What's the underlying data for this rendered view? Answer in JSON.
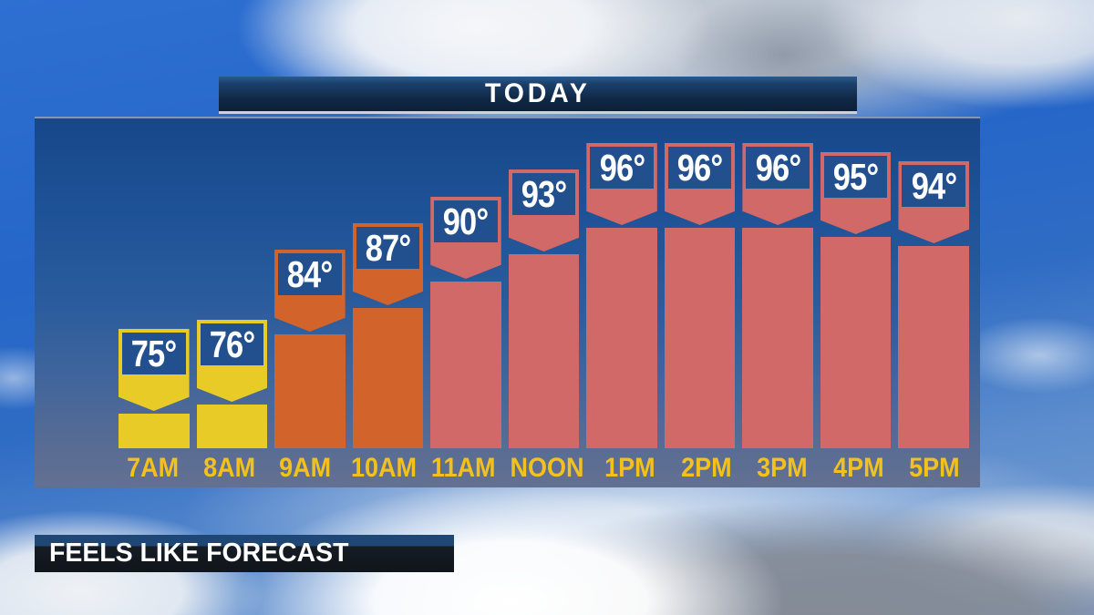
{
  "header": {
    "today_label": "TODAY"
  },
  "footer": {
    "title": "FEELS LIKE FORECAST"
  },
  "chart_data": {
    "type": "bar",
    "title": "TODAY",
    "subtitle": "FEELS LIKE FORECAST",
    "categories": [
      "7AM",
      "8AM",
      "9AM",
      "10AM",
      "11AM",
      "NOON",
      "1PM",
      "2PM",
      "3PM",
      "4PM",
      "5PM"
    ],
    "values": [
      75,
      76,
      84,
      87,
      90,
      93,
      96,
      96,
      96,
      95,
      94
    ],
    "value_labels": [
      "75°",
      "76°",
      "84°",
      "87°",
      "90°",
      "93°",
      "96°",
      "96°",
      "96°",
      "95°",
      "94°"
    ],
    "unit": "°F",
    "bar_color_keys": [
      "yellow",
      "yellow",
      "orange",
      "orange",
      "salmon",
      "salmon",
      "salmon",
      "salmon",
      "salmon",
      "salmon",
      "salmon"
    ],
    "xlabel": "",
    "ylabel": "",
    "baseline_value_implied": 62,
    "grid": false,
    "legend": null
  },
  "colors": {
    "yellow": "#e9cb27",
    "orange": "#d2632a",
    "salmon": "#d06967",
    "label_box_blue": "#22508f",
    "time_label_gold": "#f2c11d",
    "panel_top": "#17478a",
    "panel_bottom": "#637092",
    "banner_navy": "#0f2846",
    "banner_border": "#c8d3df",
    "text_white": "#ffffff"
  }
}
